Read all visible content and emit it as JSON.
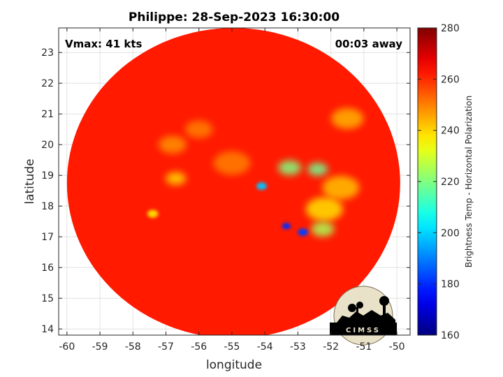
{
  "chart_data": {
    "type": "heatmap",
    "title": "Philippe: 28-Sep-2023 16:30:00",
    "xlabel": "longitude",
    "ylabel": "latitude",
    "xlim": [
      -60.25,
      -49.6
    ],
    "ylim": [
      13.8,
      23.8
    ],
    "x_ticks": [
      -60,
      -59,
      -58,
      -57,
      -56,
      -55,
      -54,
      -53,
      -52,
      -51,
      -50
    ],
    "y_ticks": [
      14,
      15,
      16,
      17,
      18,
      19,
      20,
      21,
      22,
      23
    ],
    "x_tick_labels": [
      "-60",
      "-59",
      "-58",
      "-57",
      "-56",
      "-55",
      "-54",
      "-53",
      "-52",
      "-51",
      "-50"
    ],
    "y_tick_labels": [
      "14",
      "15",
      "16",
      "17",
      "18",
      "19",
      "20",
      "21",
      "22",
      "23"
    ],
    "grid": true,
    "annotations": {
      "left": "Vmax: 41 kts",
      "right": "00:03 away"
    },
    "swath": {
      "center": [
        -54.95,
        18.75
      ],
      "radius_lon": 5.05,
      "radius_lat": 5.05
    },
    "background_value": 262,
    "features": [
      {
        "lon": -53.35,
        "lat": 17.35,
        "value": 180,
        "width": 0.12
      },
      {
        "lon": -52.85,
        "lat": 17.15,
        "value": 182,
        "width": 0.14
      },
      {
        "lon": -54.1,
        "lat": 18.65,
        "value": 198,
        "width": 0.14
      },
      {
        "lon": -53.25,
        "lat": 19.25,
        "value": 220,
        "width": 0.25
      },
      {
        "lon": -52.4,
        "lat": 19.2,
        "value": 218,
        "width": 0.22
      },
      {
        "lon": -52.25,
        "lat": 17.25,
        "value": 225,
        "width": 0.25
      },
      {
        "lon": -52.2,
        "lat": 17.9,
        "value": 238,
        "width": 0.4
      },
      {
        "lon": -51.7,
        "lat": 18.6,
        "value": 242,
        "width": 0.4
      },
      {
        "lon": -51.5,
        "lat": 20.85,
        "value": 244,
        "width": 0.35
      },
      {
        "lon": -56.7,
        "lat": 18.9,
        "value": 240,
        "width": 0.22
      },
      {
        "lon": -57.4,
        "lat": 17.75,
        "value": 240,
        "width": 0.15
      },
      {
        "lon": -56.8,
        "lat": 20.0,
        "value": 248,
        "width": 0.3
      },
      {
        "lon": -56.0,
        "lat": 20.5,
        "value": 250,
        "width": 0.3
      },
      {
        "lon": -55.0,
        "lat": 19.4,
        "value": 250,
        "width": 0.4
      }
    ],
    "colorbar": {
      "label": "Brightness Temp - Horizontal Polarization",
      "min": 160,
      "max": 280,
      "ticks": [
        160,
        180,
        200,
        220,
        240,
        260,
        280
      ],
      "tick_labels": [
        "160",
        "180",
        "200",
        "220",
        "240",
        "260",
        "280"
      ],
      "colormap": "jet"
    },
    "logo_text": "CIMSS"
  }
}
